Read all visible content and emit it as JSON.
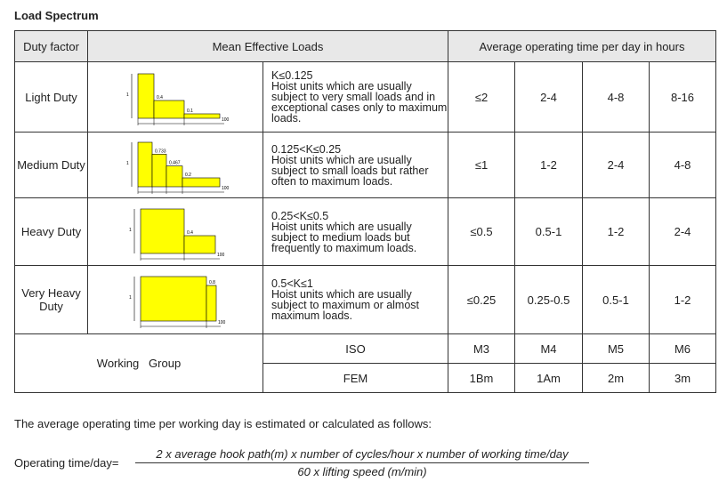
{
  "title": "Load Spectrum",
  "table": {
    "header": [
      "Duty factor",
      "Mean Effective Loads",
      "Average operating time per day in hours"
    ],
    "rows": [
      {
        "duty": "Light Duty",
        "diagram_labels": [
          "1",
          "0.4",
          "0.1",
          "100"
        ],
        "condition": "K≤0.125",
        "description": "Hoist units which are usually subject to very small loads and in exceptional cases only to maximum loads.",
        "times": [
          "≤2",
          "2-4",
          "4-8",
          "8-16"
        ]
      },
      {
        "duty": "Medium Duty",
        "diagram_labels": [
          "1",
          "0.733",
          "0.467",
          "0.2",
          "100"
        ],
        "condition": "0.125<K≤0.25",
        "description": "Hoist units which are usually subject to small loads but rather often to maximum loads.",
        "times": [
          "≤1",
          "1-2",
          "2-4",
          "4-8"
        ]
      },
      {
        "duty": "Heavy Duty",
        "diagram_labels": [
          "1",
          "0.4",
          "100"
        ],
        "condition": "0.25<K≤0.5",
        "description": "Hoist units which are usually subject to medium loads but frequently to maximum loads.",
        "times": [
          "≤0.5",
          "0.5-1",
          "1-2",
          "2-4"
        ]
      },
      {
        "duty": "Very Heavy Duty",
        "diagram_labels": [
          "1",
          "0.8",
          "100"
        ],
        "condition": "0.5<K≤1",
        "description": "Hoist units which are usually subject to maximum or almost maximum loads.",
        "times": [
          "≤0.25",
          "0.25-0.5",
          "0.5-1",
          "1-2"
        ]
      }
    ],
    "working_group": "Working   Group",
    "groups": [
      {
        "standard": "ISO",
        "classes": [
          "M3",
          "M4",
          "M5",
          "M6"
        ]
      },
      {
        "standard": "FEM",
        "classes": [
          "1Bm",
          "1Am",
          "2m",
          "3m"
        ]
      }
    ]
  },
  "note": "The average operating time per working day is estimated or calculated as follows:",
  "formula": {
    "label": "Operating time/day=",
    "numerator": "2 x average hook path(m) x number of cycles/hour x number of working time/day",
    "denominator": "60 x lifting speed (m/min)"
  }
}
